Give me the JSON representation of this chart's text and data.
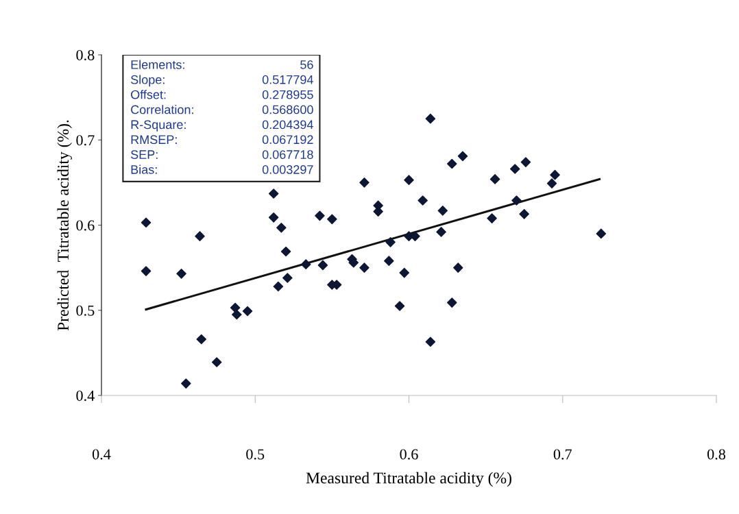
{
  "chart_data": {
    "type": "scatter",
    "xlabel": "Measured Titratable acidity (%)",
    "ylabel": "Predicted  Titratable acidity (%).",
    "xlim": [
      0.4,
      0.8
    ],
    "xticks": [
      0.4,
      0.5,
      0.6,
      0.7,
      0.8
    ],
    "ylim": [
      0.4,
      0.8
    ],
    "yticks": [
      0.4,
      0.5,
      0.6,
      0.7,
      0.8
    ],
    "grid": false,
    "legend": false,
    "series": [
      {
        "marker": "diamond",
        "color": "#0d1733",
        "x": [
          0.429,
          0.429,
          0.464,
          0.452,
          0.465,
          0.475,
          0.455,
          0.487,
          0.488,
          0.495,
          0.512,
          0.512,
          0.517,
          0.52,
          0.515,
          0.521,
          0.533,
          0.542,
          0.55,
          0.544,
          0.55,
          0.553,
          0.563,
          0.564,
          0.571,
          0.571,
          0.58,
          0.58,
          0.587,
          0.588,
          0.594,
          0.597,
          0.6,
          0.6,
          0.604,
          0.609,
          0.614,
          0.614,
          0.622,
          0.621,
          0.628,
          0.635,
          0.632,
          0.628,
          0.656,
          0.654,
          0.669,
          0.676,
          0.67,
          0.675,
          0.695,
          0.693,
          0.724,
          0.725
        ],
        "values": [
          0.603,
          0.546,
          0.587,
          0.543,
          0.466,
          0.439,
          0.414,
          0.503,
          0.495,
          0.499,
          0.637,
          0.609,
          0.597,
          0.569,
          0.528,
          0.538,
          0.554,
          0.611,
          0.607,
          0.553,
          0.53,
          0.53,
          0.56,
          0.556,
          0.65,
          0.55,
          0.623,
          0.616,
          0.558,
          0.58,
          0.505,
          0.544,
          0.653,
          0.587,
          0.587,
          0.629,
          0.725,
          0.463,
          0.617,
          0.592,
          0.672,
          0.681,
          0.55,
          0.509,
          0.654,
          0.608,
          0.666,
          0.674,
          0.629,
          0.613,
          0.659,
          0.649,
          null,
          0.59
        ]
      },
      {
        "type": "line",
        "line_style": "solid",
        "marker": "none",
        "color": "#111111",
        "x": [
          0.429,
          0.724
        ],
        "values": [
          0.501,
          0.654
        ]
      }
    ],
    "annotations": [
      "Elements:",
      "56",
      "Slope:",
      "0.517794",
      "Offset:",
      "0.278955",
      "Correlation:",
      "0.568600",
      "R-Square:",
      "0.204394",
      "RMSEP:",
      "0.067192",
      "SEP:",
      "0.067718",
      "Bias:",
      "0.003297"
    ]
  }
}
